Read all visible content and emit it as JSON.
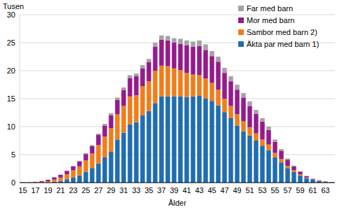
{
  "chart_data": {
    "type": "bar",
    "stacked": true,
    "grid": true,
    "legend": "upper right",
    "y_label": "Tusen",
    "x_label": "Ålder",
    "categories": [
      15,
      null,
      17,
      null,
      19,
      null,
      21,
      null,
      23,
      null,
      25,
      null,
      27,
      null,
      29,
      null,
      31,
      null,
      33,
      null,
      35,
      null,
      37,
      null,
      39,
      null,
      41,
      null,
      43,
      null,
      45,
      null,
      47,
      null,
      49,
      null,
      51,
      null,
      53,
      null,
      55,
      null,
      57,
      null,
      59,
      null,
      61,
      null,
      63,
      null
    ],
    "ylim": [
      0,
      30
    ],
    "yticks": [
      0,
      5,
      10,
      15,
      20,
      25,
      30
    ],
    "series": [
      {
        "name": "Äkta par med barn 1)",
        "color": "#1f6db1",
        "values": [
          0,
          0,
          0,
          0.02,
          0.05,
          0.15,
          0.3,
          0.6,
          0.9,
          1.3,
          1.9,
          2.6,
          3.4,
          4.5,
          5.5,
          7.7,
          8.9,
          10.4,
          10.8,
          12.0,
          12.8,
          14.2,
          15.4,
          15.4,
          15.4,
          15.4,
          15.3,
          15.4,
          15.5,
          15.0,
          14.6,
          13.8,
          12.6,
          11.5,
          10.2,
          9.2,
          8.4,
          7.5,
          6.6,
          5.8,
          4.5,
          3.6,
          2.6,
          1.9,
          1.3,
          0.8,
          0.5,
          0.3,
          0.18,
          0.08
        ]
      },
      {
        "name": "Sambor med barn 2)",
        "color": "#f07d1a",
        "values": [
          0,
          0.02,
          0.05,
          0.1,
          0.2,
          0.4,
          0.6,
          0.9,
          1.3,
          1.6,
          2.1,
          2.6,
          3.3,
          3.7,
          4.2,
          4.5,
          4.8,
          5.0,
          4.8,
          5.2,
          5.3,
          5.8,
          5.5,
          5.4,
          5.0,
          4.7,
          4.3,
          3.9,
          3.7,
          3.6,
          3.2,
          2.8,
          2.4,
          2.2,
          2.0,
          1.8,
          1.5,
          1.3,
          1.1,
          1.0,
          0.8,
          0.6,
          0.4,
          0.3,
          0.2,
          0.1,
          0.06,
          0.04,
          0.02,
          0.01
        ]
      },
      {
        "name": "Mor med barn",
        "color": "#951a8c",
        "values": [
          0.05,
          0.05,
          0.1,
          0.15,
          0.25,
          0.4,
          0.5,
          0.6,
          0.7,
          0.9,
          1.1,
          1.3,
          1.8,
          2.0,
          2.3,
          2.6,
          2.8,
          3.3,
          3.4,
          3.2,
          3.4,
          4.3,
          4.6,
          4.6,
          4.6,
          4.7,
          4.9,
          5.0,
          5.2,
          5.1,
          4.8,
          5.0,
          4.6,
          4.4,
          4.4,
          4.2,
          3.8,
          3.5,
          3.2,
          2.6,
          2.0,
          1.5,
          1.1,
          0.7,
          0.45,
          0.25,
          0.12,
          0.06,
          0.03,
          0.02
        ]
      },
      {
        "name": "Far med barn",
        "color": "#a3a3a3",
        "values": [
          0,
          0,
          0,
          0,
          0.02,
          0.02,
          0.03,
          0.05,
          0.07,
          0.1,
          0.15,
          0.2,
          0.25,
          0.3,
          0.4,
          0.4,
          0.5,
          0.5,
          0.5,
          0.6,
          0.6,
          0.7,
          0.8,
          0.8,
          0.8,
          0.9,
          0.9,
          0.9,
          1.0,
          1.0,
          0.9,
          0.9,
          0.9,
          0.9,
          0.9,
          0.8,
          0.8,
          0.7,
          0.6,
          0.6,
          0.4,
          0.3,
          0.2,
          0.15,
          0.1,
          0.07,
          0.05,
          0.03,
          0.02,
          0.01
        ]
      }
    ]
  }
}
